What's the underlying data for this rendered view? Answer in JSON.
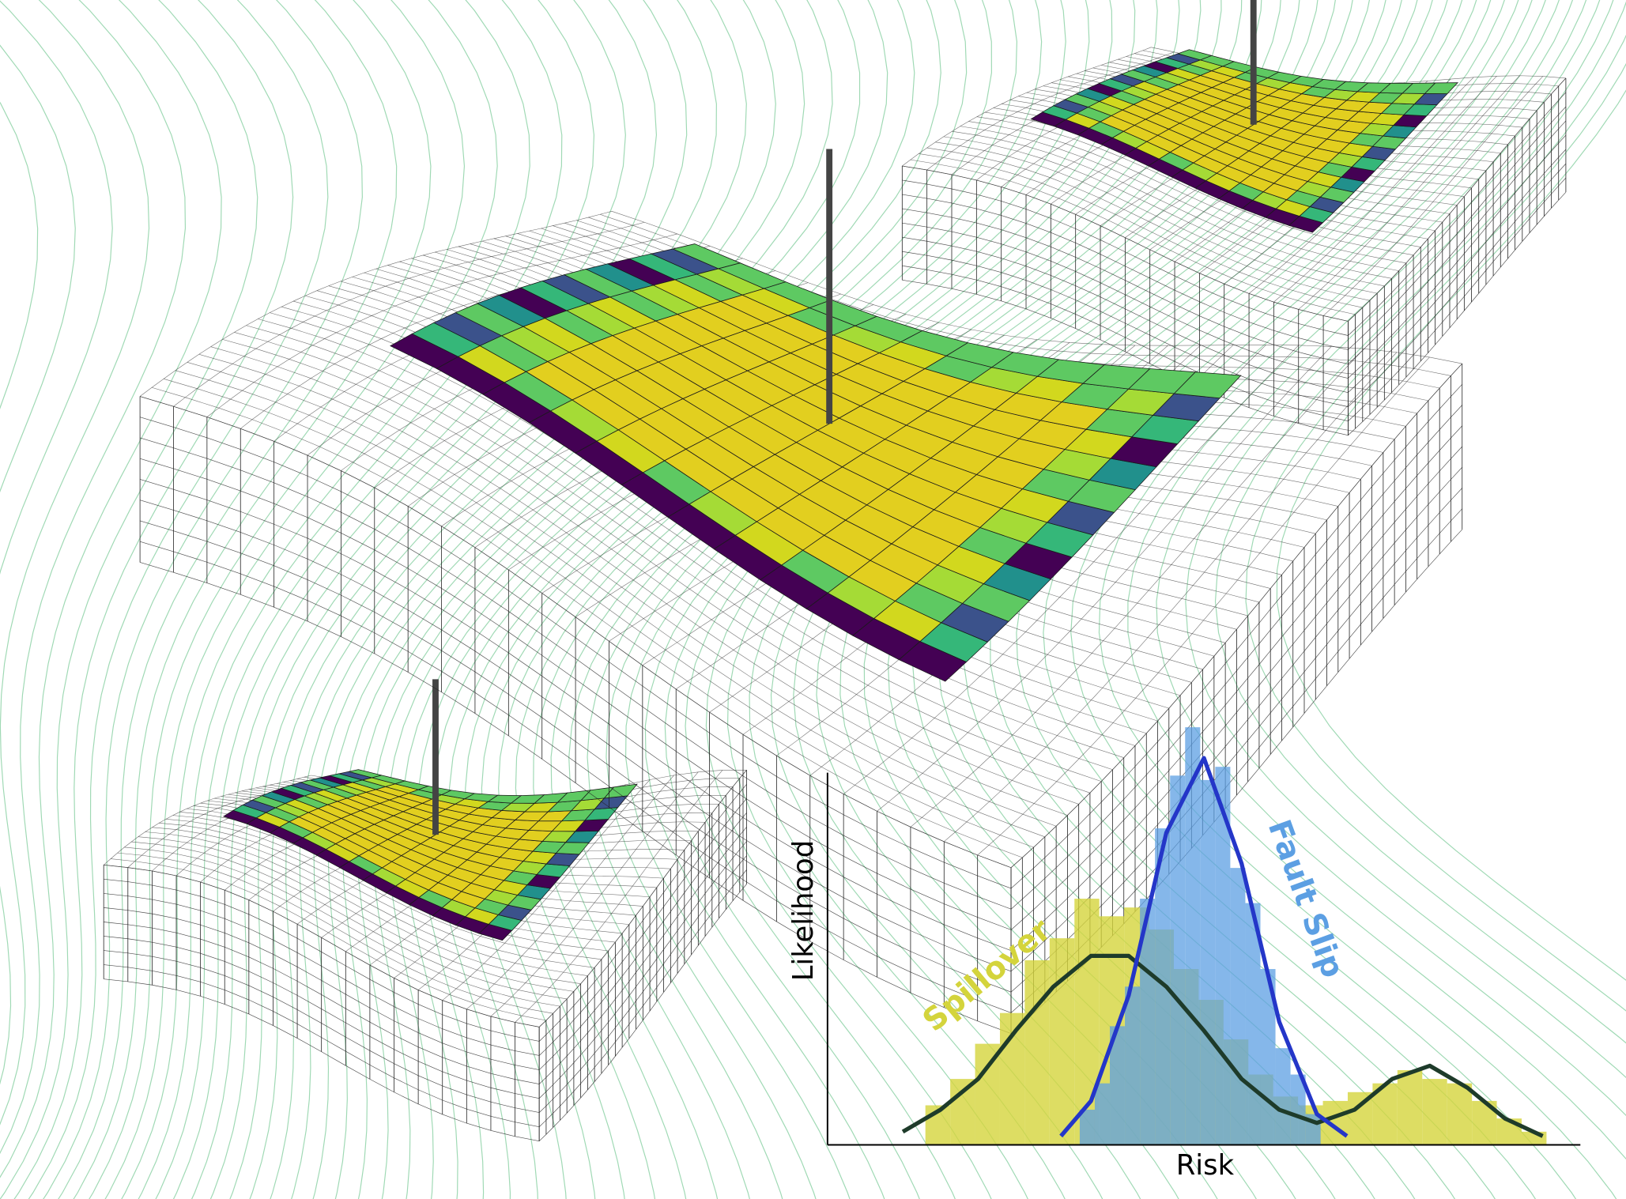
{
  "chart_data": {
    "type": "histogram",
    "x_label": "Risk",
    "y_label": "Likelihood",
    "xlim": [
      0,
      1
    ],
    "ylim": [
      0,
      1
    ],
    "series": [
      {
        "name": "Spillover",
        "color": "#d4d43c",
        "bins": [
          0.13,
          0.163,
          0.196,
          0.229,
          0.262,
          0.295,
          0.328,
          0.361,
          0.394,
          0.427,
          0.46,
          0.493,
          0.526,
          0.559,
          0.592,
          0.625,
          0.658,
          0.691,
          0.724,
          0.757,
          0.79,
          0.823,
          0.856,
          0.889,
          0.922,
          0.955
        ],
        "values": [
          0.09,
          0.15,
          0.23,
          0.3,
          0.42,
          0.47,
          0.56,
          0.52,
          0.54,
          0.49,
          0.4,
          0.33,
          0.24,
          0.16,
          0.11,
          0.09,
          0.1,
          0.12,
          0.14,
          0.17,
          0.15,
          0.14,
          0.1,
          0.06,
          0.03
        ]
      },
      {
        "name": "Fault Slip",
        "color": "#5c9fe3",
        "bins": [
          0.335,
          0.355,
          0.375,
          0.395,
          0.415,
          0.435,
          0.455,
          0.475,
          0.495,
          0.515,
          0.535,
          0.555,
          0.575,
          0.595,
          0.615,
          0.635,
          0.655
        ],
        "values": [
          0.08,
          0.14,
          0.27,
          0.36,
          0.56,
          0.72,
          0.84,
          0.95,
          0.83,
          0.86,
          0.63,
          0.55,
          0.4,
          0.22,
          0.16,
          0.07
        ]
      }
    ],
    "fits": [
      {
        "color": "#1e3b2a",
        "x": [
          0.1,
          0.15,
          0.2,
          0.25,
          0.3,
          0.35,
          0.4,
          0.45,
          0.5,
          0.55,
          0.6,
          0.65,
          0.7,
          0.75,
          0.8,
          0.85,
          0.9,
          0.95
        ],
        "values": [
          0.03,
          0.08,
          0.15,
          0.26,
          0.36,
          0.43,
          0.43,
          0.36,
          0.26,
          0.15,
          0.08,
          0.05,
          0.08,
          0.15,
          0.18,
          0.13,
          0.06,
          0.02
        ]
      },
      {
        "color": "#2436c8",
        "x": [
          0.31,
          0.35,
          0.4,
          0.45,
          0.5,
          0.55,
          0.6,
          0.65,
          0.69
        ],
        "values": [
          0.02,
          0.1,
          0.34,
          0.71,
          0.88,
          0.64,
          0.28,
          0.07,
          0.02
        ]
      }
    ]
  }
}
